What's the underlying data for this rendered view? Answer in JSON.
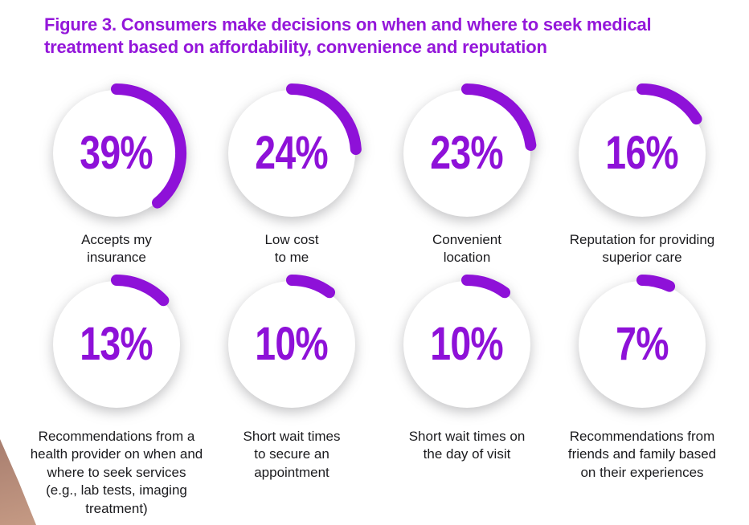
{
  "figure": {
    "title": "Figure 3. Consumers make decisions on when and where to seek medical\ntreatment based on affordability, convenience and reputation"
  },
  "colors": {
    "accent_purple": "#8e11d8",
    "title_purple": "#9417da",
    "label_text": "#1b1b1e",
    "circle_fill": "#ffffff",
    "photo_wedge_from": "#a87e6f",
    "photo_wedge_to": "#c59a84"
  },
  "chart_data": {
    "type": "pie",
    "subtype": "progress-donut-grid",
    "title": "Figure 3. Consumers make decisions on when and where to seek medical treatment based on affordability, convenience and reputation",
    "unit": "%",
    "layout": {
      "rows": 2,
      "cols": 4,
      "legend": "none",
      "grid": false,
      "arc_start": "top",
      "arc_direction": "clockwise"
    },
    "categories": [
      "Accepts my insurance",
      "Low cost to me",
      "Convenient location",
      "Reputation for providing superior care",
      "Recommendations from a health provider on when and where to seek services (e.g., lab tests, imaging treatment)",
      "Short wait times to secure an appointment",
      "Short wait times on the day of visit",
      "Recommendations from friends and family based on their experiences"
    ],
    "values": [
      39,
      24,
      23,
      16,
      13,
      10,
      10,
      7
    ],
    "items": [
      {
        "value": 39,
        "pct_label": "39%",
        "label": "Accepts my\ninsurance"
      },
      {
        "value": 24,
        "pct_label": "24%",
        "label": "Low cost\nto me"
      },
      {
        "value": 23,
        "pct_label": "23%",
        "label": "Convenient\nlocation"
      },
      {
        "value": 16,
        "pct_label": "16%",
        "label": "Reputation for providing\nsuperior care"
      },
      {
        "value": 13,
        "pct_label": "13%",
        "label": "Recommendations from a\nhealth provider on when and\nwhere to seek services\n(e.g., lab tests, imaging\ntreatment)"
      },
      {
        "value": 10,
        "pct_label": "10%",
        "label": "Short wait times\nto secure an\nappointment"
      },
      {
        "value": 10,
        "pct_label": "10%",
        "label": "Short wait times on\nthe day of visit"
      },
      {
        "value": 7,
        "pct_label": "7%",
        "label": "Recommendations from\nfriends and family based\non their experiences"
      }
    ]
  },
  "decor": {
    "photo_fragment": "skin-tone-photo-corner"
  }
}
